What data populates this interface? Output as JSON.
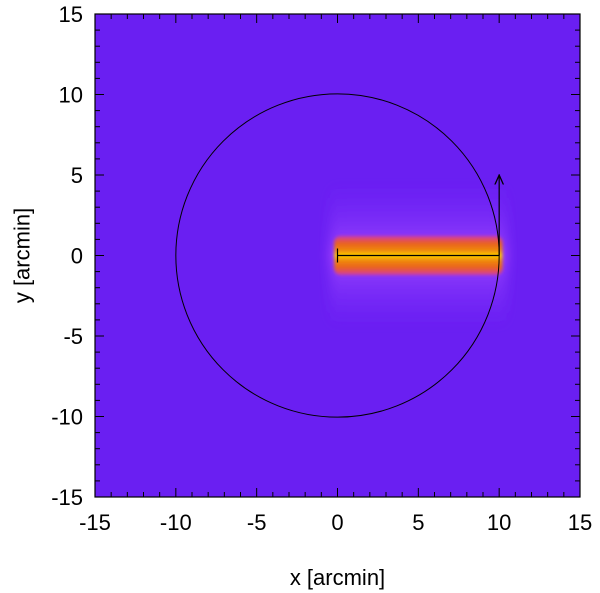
{
  "chart_data": {
    "type": "heatmap",
    "title": "",
    "xlabel": "x [arcmin]",
    "ylabel": "y [arcmin]",
    "xlim": [
      -15,
      15
    ],
    "ylim": [
      -15,
      15
    ],
    "x_ticks": [
      -15,
      -10,
      -5,
      0,
      5,
      10,
      15
    ],
    "y_ticks": [
      -15,
      -10,
      -5,
      0,
      5,
      10,
      15
    ],
    "x_tick_labels": [
      "-15",
      "-10",
      "-5",
      "0",
      "5",
      "10",
      "15"
    ],
    "y_tick_labels": [
      "-15",
      "-10",
      "-5",
      "0",
      "5",
      "10",
      "15"
    ],
    "minor_tick_step": 1,
    "grid": false,
    "background_color": "#6a1ff2",
    "circle": {
      "center": [
        0,
        0
      ],
      "radius": 10,
      "color": "#000000"
    },
    "bright_band": {
      "x_range": [
        -0.2,
        10.2
      ],
      "y_half_width": 1.2,
      "halo_y_half_width": 4.5,
      "colors": [
        "#5b10e8",
        "#9933ff",
        "#d63aa0",
        "#e8601e",
        "#f08a0a",
        "#ffd400"
      ]
    },
    "track_line": {
      "from": [
        0,
        0
      ],
      "to": [
        10,
        0
      ]
    },
    "start_marker": {
      "x": 0,
      "y": 0
    },
    "arrow": {
      "from": [
        10,
        0
      ],
      "to": [
        10,
        5
      ]
    }
  }
}
